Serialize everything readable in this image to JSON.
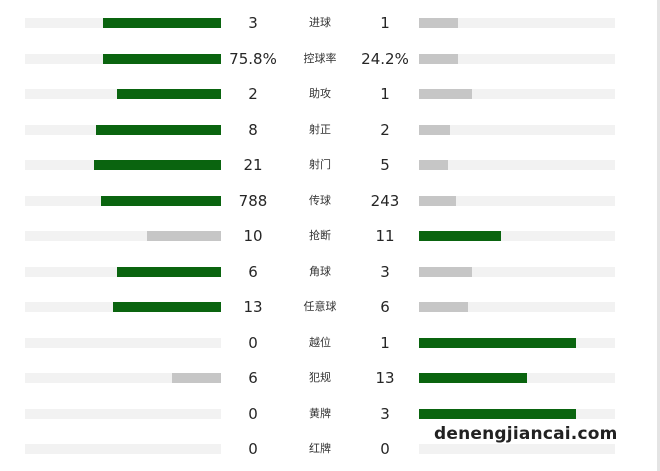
{
  "colors": {
    "leader_bar": "#0a640f",
    "trailer_bar": "#c6c6c6",
    "track": "#f2f2f2",
    "text": "#262626"
  },
  "stats": [
    {
      "label": "进球",
      "home": "3",
      "away": "1",
      "home_fill": 0.6,
      "away_fill": 0.2,
      "leader": "home"
    },
    {
      "label": "控球率",
      "home": "75.8%",
      "away": "24.2%",
      "home_fill": 0.6,
      "away_fill": 0.2,
      "leader": "home"
    },
    {
      "label": "助攻",
      "home": "2",
      "away": "1",
      "home_fill": 0.53,
      "away_fill": 0.27,
      "leader": "home"
    },
    {
      "label": "射正",
      "home": "8",
      "away": "2",
      "home_fill": 0.64,
      "away_fill": 0.16,
      "leader": "home"
    },
    {
      "label": "射门",
      "home": "21",
      "away": "5",
      "home_fill": 0.65,
      "away_fill": 0.15,
      "leader": "home"
    },
    {
      "label": "传球",
      "home": "788",
      "away": "243",
      "home_fill": 0.61,
      "away_fill": 0.19,
      "leader": "home"
    },
    {
      "label": "抢断",
      "home": "10",
      "away": "11",
      "home_fill": 0.38,
      "away_fill": 0.42,
      "leader": "away"
    },
    {
      "label": "角球",
      "home": "6",
      "away": "3",
      "home_fill": 0.53,
      "away_fill": 0.27,
      "leader": "home"
    },
    {
      "label": "任意球",
      "home": "13",
      "away": "6",
      "home_fill": 0.55,
      "away_fill": 0.25,
      "leader": "home"
    },
    {
      "label": "越位",
      "home": "0",
      "away": "1",
      "home_fill": 0.0,
      "away_fill": 0.8,
      "leader": "away"
    },
    {
      "label": "犯规",
      "home": "6",
      "away": "13",
      "home_fill": 0.25,
      "away_fill": 0.55,
      "leader": "away"
    },
    {
      "label": "黄牌",
      "home": "0",
      "away": "3",
      "home_fill": 0.0,
      "away_fill": 0.8,
      "leader": "away"
    },
    {
      "label": "红牌",
      "home": "0",
      "away": "0",
      "home_fill": 0.0,
      "away_fill": 0.0,
      "leader": "none"
    }
  ],
  "watermark": "denengjiancai.com"
}
